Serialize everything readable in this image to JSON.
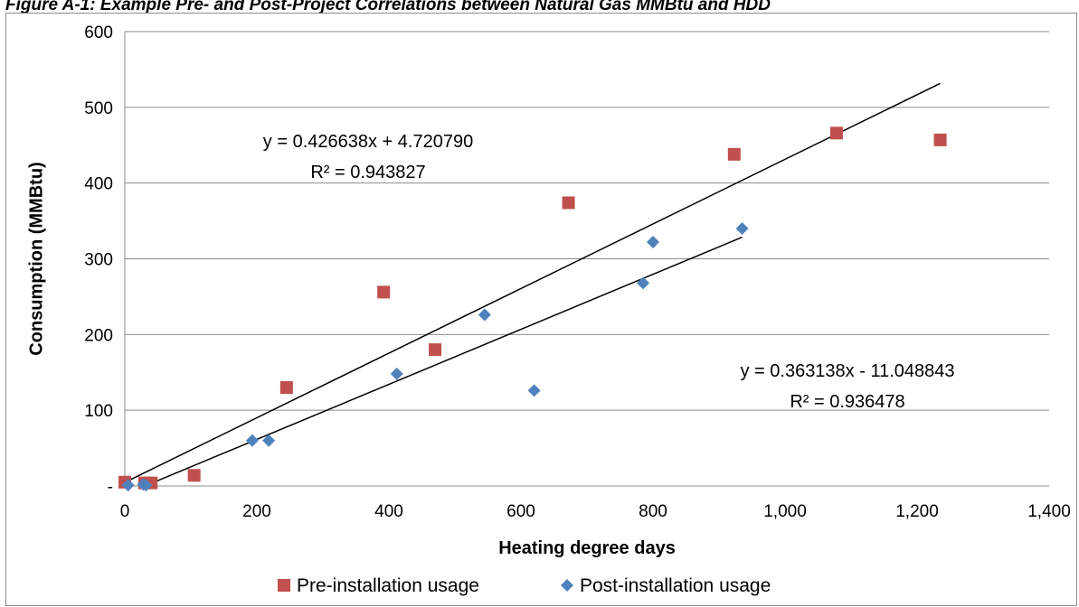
{
  "figure_title": "Figure A-1: Example Pre- and Post-Project Correlations between Natural Gas MMBtu and HDD",
  "chart_data": {
    "type": "scatter",
    "xlabel": "Heating degree days",
    "ylabel": "Consumption (MMBtu)",
    "xlim": [
      0,
      1400
    ],
    "ylim": [
      0,
      600
    ],
    "x_ticks": [
      "0",
      "200",
      "400",
      "600",
      "800",
      "1,000",
      "1,200",
      "1,400"
    ],
    "y_ticks": [
      "-",
      "100",
      "200",
      "300",
      "400",
      "500",
      "600"
    ],
    "grid": "horizontal",
    "legend_position": "bottom",
    "series": [
      {
        "name": "Pre-installation usage",
        "marker": "square",
        "color": "#c0504d",
        "points": [
          [
            0,
            5
          ],
          [
            30,
            4
          ],
          [
            40,
            4
          ],
          [
            105,
            14
          ],
          [
            245,
            130
          ],
          [
            392,
            256
          ],
          [
            470,
            180
          ],
          [
            672,
            374
          ],
          [
            923,
            438
          ],
          [
            1078,
            466
          ],
          [
            1235,
            457
          ]
        ],
        "trendline": {
          "x_range": [
            0,
            1235
          ],
          "slope": 0.426638,
          "intercept": 4.72079,
          "equation": "y = 0.426638x + 4.720790",
          "r2": "R² = 0.943827"
        }
      },
      {
        "name": "Post-installation usage",
        "marker": "diamond",
        "color": "#4f81bd",
        "points": [
          [
            5,
            1
          ],
          [
            28,
            2
          ],
          [
            32,
            1
          ],
          [
            193,
            60
          ],
          [
            218,
            60
          ],
          [
            412,
            148
          ],
          [
            545,
            226
          ],
          [
            620,
            126
          ],
          [
            785,
            268
          ],
          [
            800,
            322
          ],
          [
            935,
            340
          ]
        ],
        "trendline": {
          "x_range": [
            32,
            935
          ],
          "slope": 0.363138,
          "intercept": -11.048843,
          "equation": "y = 0.363138x - 11.048843",
          "r2": "R² = 0.936478"
        }
      }
    ]
  }
}
